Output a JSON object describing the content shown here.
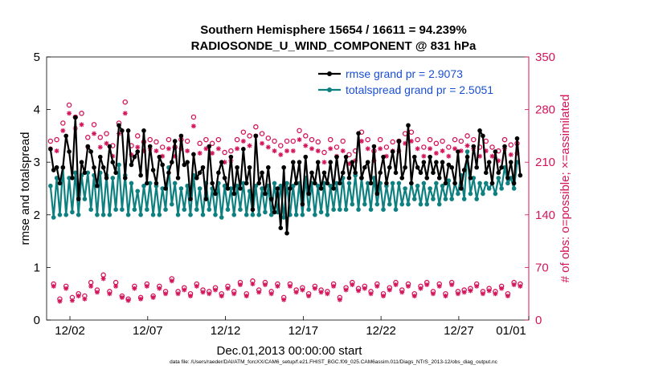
{
  "chart_data": {
    "type": "line",
    "title_line1": "Southern Hemisphere 15654 / 16611 = 94.239%",
    "title_line2": "RADIOSONDE_U_WIND_COMPONENT @ 831 hPa",
    "xlabel": "Dec.01,2013 00:00:00 start",
    "ylabel_left": "rmse and totalspread",
    "ylabel_right": "# of obs: o=possible; ×=assimilated",
    "xlim": [
      0.5,
      31.5
    ],
    "ylim_left": [
      0,
      5
    ],
    "ylim_right": [
      0,
      350
    ],
    "x_ticks": [
      {
        "x": 2,
        "label": "12/02"
      },
      {
        "x": 7,
        "label": "12/07"
      },
      {
        "x": 12,
        "label": "12/12"
      },
      {
        "x": 17,
        "label": "12/17"
      },
      {
        "x": 22,
        "label": "12/22"
      },
      {
        "x": 27,
        "label": "12/27"
      },
      {
        "x": 32,
        "label": "01/01"
      }
    ],
    "y_ticks_left": [
      "0",
      "1",
      "2",
      "3",
      "4",
      "5"
    ],
    "y_ticks_right": [
      "0",
      "70",
      "140",
      "210",
      "280",
      "350"
    ],
    "colors": {
      "rmse": "#000000",
      "spread": "#0f8080",
      "obs": "#d4145a",
      "legend_text": "#1a4fd0"
    },
    "series": [
      {
        "name": "rmse grand pr = 2.9073",
        "axis": "left",
        "values": [
          3.25,
          2.85,
          2.9,
          2.6,
          2.9,
          3.5,
          3.2,
          2.7,
          3.85,
          2.3,
          3.0,
          2.8,
          3.3,
          3.2,
          2.9,
          2.55,
          3.1,
          2.9,
          2.7,
          3.3,
          3.0,
          2.8,
          3.7,
          3.6,
          2.7,
          3.6,
          2.95,
          3.1,
          3.2,
          2.75,
          3.6,
          2.6,
          3.3,
          2.85,
          2.6,
          3.1,
          2.95,
          2.5,
          2.8,
          3.0,
          3.4,
          2.7,
          3.5,
          2.95,
          3.0,
          2.3,
          3.15,
          2.7,
          2.8,
          2.9,
          2.3,
          3.3,
          2.6,
          2.4,
          2.8,
          3.0,
          2.7,
          2.5,
          3.1,
          2.4,
          2.9,
          2.5,
          3.25,
          2.6,
          2.9,
          2.1,
          3.5,
          2.6,
          2.8,
          2.4,
          2.9,
          2.3,
          2.05,
          2.5,
          1.75,
          2.9,
          1.65,
          2.5,
          3.0,
          2.6,
          3.0,
          2.2,
          3.1,
          2.4,
          2.8,
          2.6,
          3.0,
          2.5,
          2.8,
          2.6,
          3.0,
          2.5,
          3.1,
          2.6,
          2.8,
          3.1,
          2.7,
          3.0,
          2.8,
          3.55,
          2.7,
          2.9,
          3.0,
          2.6,
          3.3,
          2.4,
          2.8,
          3.1,
          2.6,
          2.9,
          3.2,
          2.8,
          3.4,
          2.7,
          2.9,
          3.7,
          2.6,
          3.1,
          2.9,
          2.8,
          3.0,
          2.7,
          3.1,
          2.8,
          3.0,
          2.7,
          3.0,
          2.6,
          2.95,
          2.9,
          2.6,
          3.2,
          2.5,
          2.85,
          3.1,
          2.7,
          3.3,
          2.9,
          3.6,
          3.5,
          2.8,
          3.0,
          2.6,
          3.2,
          2.8,
          2.9,
          3.3,
          2.7,
          3.0,
          2.6,
          3.45,
          2.75
        ]
      },
      {
        "name": "totalspread grand pr = 2.5051",
        "axis": "left",
        "values": [
          2.55,
          1.95,
          2.7,
          2.0,
          2.9,
          2.0,
          2.7,
          2.05,
          2.8,
          2.0,
          2.75,
          2.3,
          2.8,
          2.1,
          2.75,
          2.0,
          2.8,
          2.0,
          2.75,
          2.0,
          2.7,
          2.1,
          2.95,
          2.1,
          2.75,
          2.0,
          2.6,
          2.1,
          2.45,
          2.0,
          2.55,
          2.1,
          2.6,
          2.0,
          2.55,
          2.0,
          2.5,
          2.1,
          2.9,
          2.2,
          2.6,
          2.0,
          2.5,
          2.1,
          2.55,
          2.0,
          2.75,
          2.1,
          2.5,
          2.0,
          2.6,
          2.1,
          2.5,
          2.0,
          2.6,
          1.95,
          2.55,
          2.1,
          2.5,
          2.0,
          2.55,
          2.1,
          2.6,
          2.0,
          2.45,
          2.0,
          2.55,
          2.0,
          2.5,
          2.05,
          2.55,
          2.0,
          2.6,
          2.05,
          2.55,
          1.95,
          2.6,
          2.0,
          2.55,
          2.0,
          2.6,
          2.0,
          2.7,
          2.1,
          2.6,
          2.0,
          2.55,
          2.05,
          2.6,
          2.0,
          2.55,
          2.1,
          2.6,
          2.1,
          2.7,
          2.1,
          2.6,
          2.2,
          2.75,
          2.1,
          2.7,
          2.2,
          2.6,
          2.1,
          2.7,
          2.2,
          2.6,
          2.1,
          2.55,
          2.2,
          2.6,
          2.1,
          2.6,
          2.2,
          2.5,
          2.2,
          2.6,
          2.3,
          2.55,
          2.2,
          2.6,
          2.2,
          2.5,
          2.3,
          2.6,
          2.2,
          2.55,
          2.3,
          2.65,
          2.3,
          2.6,
          2.4,
          2.75,
          2.3,
          3.2,
          2.4,
          2.7,
          2.3,
          2.6,
          2.4,
          2.6,
          2.5,
          2.6,
          2.4,
          2.7,
          2.5,
          2.9,
          2.6,
          2.7,
          2.5,
          3.0
        ]
      }
    ],
    "obs_possible": {
      "name": "possible",
      "axis": "right",
      "values": [
        238,
        48,
        240,
        28,
        262,
        45,
        286,
        30,
        270,
        35,
        275,
        32,
        243,
        50,
        260,
        40,
        243,
        60,
        248,
        38,
        232,
        50,
        262,
        32,
        290,
        28,
        232,
        45,
        245,
        30,
        237,
        48,
        240,
        32,
        237,
        45,
        230,
        38,
        240,
        55,
        230,
        38,
        240,
        43,
        238,
        35,
        270,
        48,
        235,
        40,
        240,
        38,
        235,
        43,
        240,
        35,
        223,
        45,
        225,
        38,
        240,
        50,
        250,
        35,
        245,
        52,
        257,
        40,
        248,
        50,
        242,
        38,
        238,
        48,
        232,
        30,
        238,
        48,
        238,
        40,
        252,
        43,
        245,
        35,
        240,
        45,
        237,
        40,
        223,
        38,
        240,
        48,
        230,
        30,
        238,
        43,
        220,
        50,
        225,
        42,
        250,
        45,
        240,
        38,
        225,
        48,
        240,
        35,
        230,
        43,
        237,
        50,
        238,
        40,
        248,
        48,
        250,
        35,
        240,
        45,
        230,
        50,
        240,
        38,
        235,
        48,
        238,
        35,
        230,
        50,
        240,
        38,
        238,
        40,
        245,
        42,
        240,
        48,
        230,
        38,
        238,
        42,
        230,
        38,
        225,
        45,
        240,
        35,
        233,
        50,
        235,
        48
      ]
    },
    "obs_assimilated": {
      "name": "assimilated",
      "axis": "right",
      "values": [
        228,
        45,
        225,
        25,
        252,
        42,
        275,
        26,
        255,
        32,
        260,
        28,
        230,
        45,
        248,
        37,
        230,
        55,
        235,
        35,
        218,
        45,
        248,
        30,
        275,
        26,
        220,
        42,
        230,
        28,
        225,
        45,
        228,
        30,
        225,
        42,
        218,
        35,
        228,
        52,
        218,
        35,
        228,
        40,
        225,
        32,
        258,
        45,
        222,
        37,
        228,
        35,
        222,
        40,
        228,
        32,
        210,
        42,
        212,
        35,
        228,
        47,
        238,
        32,
        232,
        48,
        245,
        37,
        235,
        47,
        230,
        35,
        225,
        45,
        220,
        27,
        225,
        45,
        225,
        37,
        240,
        40,
        232,
        32,
        228,
        42,
        225,
        37,
        210,
        35,
        228,
        45,
        218,
        27,
        225,
        40,
        208,
        47,
        212,
        39,
        238,
        42,
        228,
        35,
        212,
        45,
        228,
        32,
        218,
        40,
        225,
        47,
        225,
        37,
        235,
        45,
        238,
        32,
        228,
        42,
        218,
        47,
        228,
        35,
        222,
        45,
        225,
        32,
        218,
        47,
        228,
        35,
        225,
        37,
        232,
        39,
        228,
        45,
        218,
        35,
        225,
        39,
        218,
        35,
        212,
        42,
        228,
        32,
        220,
        47,
        222,
        45
      ]
    },
    "legend": [
      {
        "label": "rmse grand pr = 2.9073",
        "series": "rmse"
      },
      {
        "label": "totalspread grand pr = 2.5051",
        "series": "spread"
      }
    ],
    "legend_position": "top-right",
    "grid": false
  },
  "footnote": "data file: /Users/raeder/DAI/ATM_forcXX/CAM6_setup/f.e21.FHIST_BGC.f09_025.CAM6assim.011/Diags_NTrS_2013-12/obs_diag_output.nc"
}
